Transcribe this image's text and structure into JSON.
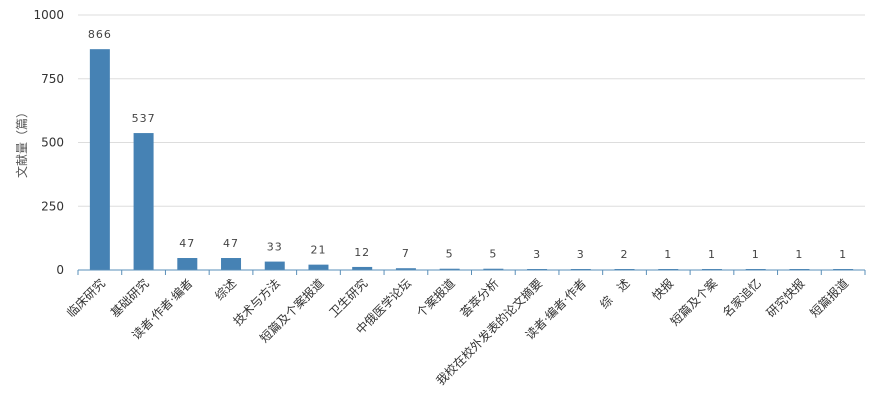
{
  "chart_data": {
    "type": "bar",
    "title": "",
    "xlabel": "",
    "ylabel": "文献量（篇）",
    "ylim": [
      0,
      1000
    ],
    "yticks": [
      0,
      250,
      500,
      750,
      1000
    ],
    "grid": true,
    "categories": [
      "临床研究",
      "基础研究",
      "读者·作者·编者",
      "综述",
      "技术与方法",
      "短篇及个案报道",
      "卫生研究",
      "中俄医学论坛",
      "个案报道",
      "荟萃分析",
      "我校在校外发表的论文摘要",
      "读者·编者·作者",
      "综　述",
      "快报",
      "短篇及个案",
      "名家追忆",
      "研究快报",
      "短篇报道"
    ],
    "values": [
      866,
      537,
      47,
      47,
      33,
      21,
      12,
      7,
      5,
      5,
      3,
      3,
      2,
      1,
      1,
      1,
      1,
      1
    ],
    "colors": {
      "bar": "#4682b4",
      "grid": "#dddddd",
      "axis": "#5a8fb8"
    }
  }
}
